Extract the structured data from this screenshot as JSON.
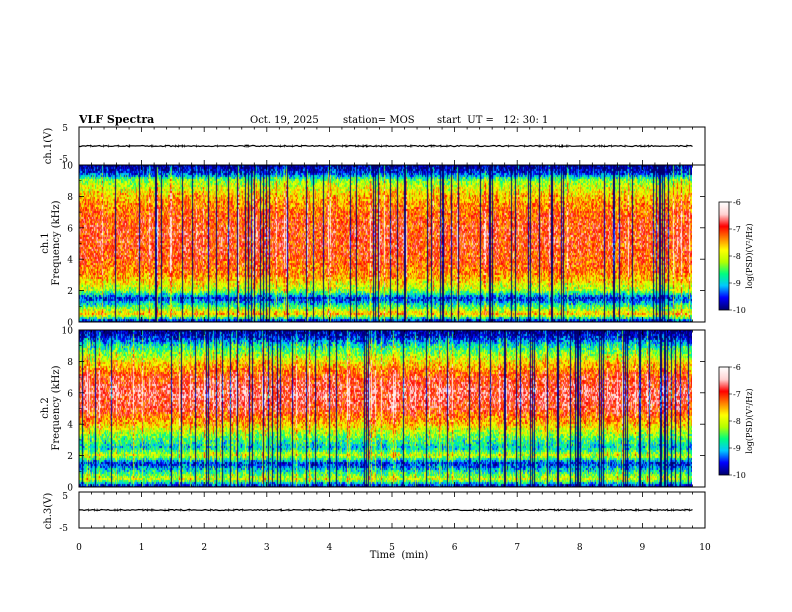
{
  "chart_data": {
    "type": "heatmap",
    "header": {
      "title": "VLF Spectra",
      "date": "Oct. 19, 2025",
      "station": "station= MOS",
      "start": "start  UT =   12: 30: 1"
    },
    "time_axis": {
      "label": "Time  (min)",
      "range": [
        0,
        10
      ],
      "ticks": [
        0,
        1,
        2,
        3,
        4,
        5,
        6,
        7,
        8,
        9,
        10
      ],
      "ticklabels": [
        "0",
        "1",
        "2",
        "3",
        "4",
        "5",
        "6",
        "7",
        "8",
        "9",
        "10"
      ],
      "data_end_min": 9.8
    },
    "panels": [
      {
        "name": "ch1-voltage",
        "type": "line",
        "ylabel": "ch.1(V)",
        "ylim": [
          -5,
          5
        ],
        "yticklabels": [
          "5",
          "-5"
        ],
        "trace_level_v": 0
      },
      {
        "name": "ch1-spectrogram",
        "type": "heatmap",
        "ylabel_line1": "ch.1",
        "ylabel_line2": "Frequency  (kHz)",
        "ylim": [
          0,
          10
        ],
        "yticks": [
          0,
          2,
          4,
          6,
          8,
          10
        ],
        "yticklabels": [
          "0",
          "2",
          "4",
          "6",
          "8",
          "10"
        ],
        "profile_freq_khz": [
          0,
          0.5,
          1.0,
          1.5,
          2.0,
          2.5,
          3.0,
          4.0,
          5.0,
          6.0,
          7.0,
          8.0,
          9.0,
          9.5,
          10.0
        ],
        "profile_log_psd": [
          -10,
          -7.6,
          -8.6,
          -9.6,
          -8.2,
          -7.8,
          -7.4,
          -7.1,
          -7.0,
          -7.0,
          -7.2,
          -7.6,
          -8.3,
          -9.6,
          -10
        ]
      },
      {
        "name": "ch2-spectrogram",
        "type": "heatmap",
        "ylabel_line1": "ch.2",
        "ylabel_line2": "Frequency  (kHz)",
        "ylim": [
          0,
          10
        ],
        "yticks": [
          0,
          2,
          4,
          6,
          8,
          10
        ],
        "yticklabels": [
          "0",
          "2",
          "4",
          "6",
          "8",
          "10"
        ],
        "profile_freq_khz": [
          0,
          0.5,
          1.0,
          1.5,
          2.0,
          2.5,
          3.0,
          4.0,
          5.0,
          6.0,
          7.0,
          8.0,
          9.0,
          9.5,
          10.0
        ],
        "profile_log_psd": [
          -10,
          -8.0,
          -8.8,
          -9.6,
          -8.0,
          -9.0,
          -8.6,
          -7.6,
          -6.9,
          -6.7,
          -7.0,
          -7.8,
          -8.8,
          -9.6,
          -10
        ]
      },
      {
        "name": "ch3-voltage",
        "type": "line",
        "ylabel": "ch.3(V)",
        "ylim": [
          -5,
          5
        ],
        "yticklabels": [
          "5",
          "-5"
        ],
        "trace_level_v": 0
      }
    ],
    "colorbar": {
      "label": "log(PSD)(V²/Hz)",
      "range": [
        -10,
        -6
      ],
      "ticks": [
        -6,
        -7,
        -8,
        -9,
        -10
      ],
      "ticklabels": [
        "-6",
        "-7",
        "-8",
        "-9",
        "-10"
      ],
      "colormap": [
        "#000070",
        "#0000ff",
        "#00c8ff",
        "#00ff80",
        "#b4ff00",
        "#ffff00",
        "#ff8000",
        "#ff0000",
        "#ffd2d2",
        "#ffffff"
      ]
    }
  }
}
